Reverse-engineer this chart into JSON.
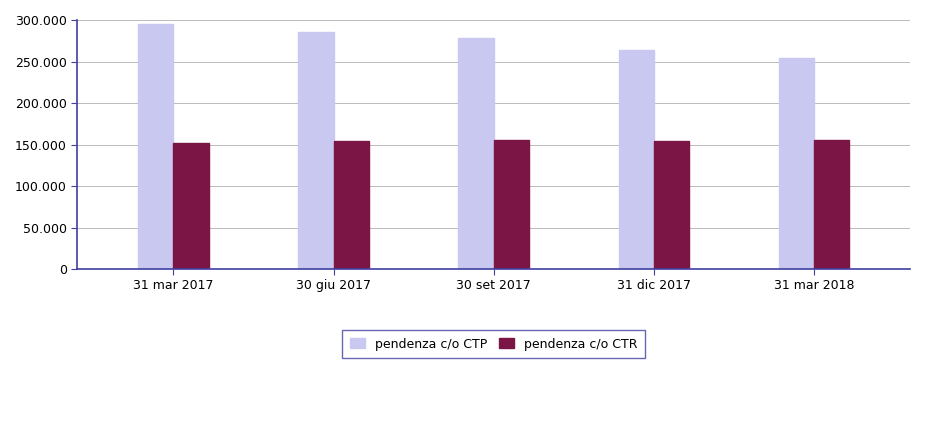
{
  "categories": [
    "31 mar 2017",
    "30 giu 2017",
    "30 set 2017",
    "31 dic 2017",
    "31 mar 2018"
  ],
  "ctp_values": [
    295000,
    285000,
    278000,
    264000,
    254000
  ],
  "ctr_values": [
    152000,
    154500,
    155500,
    154500,
    155500
  ],
  "ctp_color": "#c8c8f0",
  "ctr_color": "#7b1545",
  "ylim": [
    0,
    300000
  ],
  "yticks": [
    0,
    50000,
    100000,
    150000,
    200000,
    250000,
    300000
  ],
  "legend_labels": [
    "pendenza c/o CTP",
    "pendenza c/o CTR"
  ],
  "bar_width": 0.22,
  "bar_gap": 0.0,
  "background_color": "#ffffff",
  "grid_color": "#b0b0b0",
  "spine_color": "#4040a0",
  "tick_fontsize": 9,
  "legend_fontsize": 9
}
